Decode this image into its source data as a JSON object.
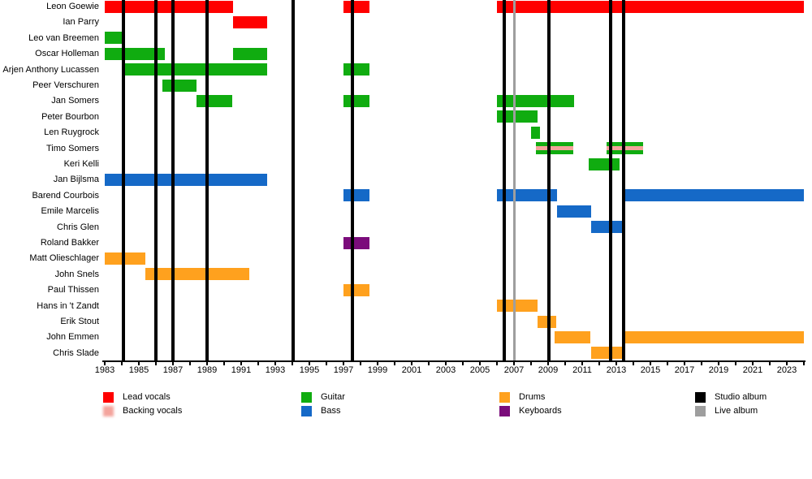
{
  "chart_data": {
    "type": "bar",
    "subtype": "band-membership-gantt-timeline",
    "x_axis": {
      "min_year": 1983,
      "max_year": 2024,
      "labeled_tick_years": [
        1983,
        1985,
        1987,
        1989,
        1991,
        1993,
        1995,
        1997,
        1999,
        2001,
        2003,
        2005,
        2007,
        2009,
        2011,
        2013,
        2015,
        2017,
        2019,
        2021,
        2023
      ],
      "minor_tick_every_years": 1,
      "grid": false
    },
    "role_colors": {
      "lead_vocals": "#FF0000",
      "backing_vocals": "#F4A49C",
      "guitar": "#10AC10",
      "bass": "#1569C7",
      "drums": "#FFA11E",
      "keyboards": "#7B0C7B",
      "studio_album": "#000000",
      "live_album": "#9E9E9E"
    },
    "members": [
      {
        "name": "Leon Goewie",
        "roles": [
          "lead_vocals"
        ],
        "periods": [
          [
            1983,
            1990.5
          ],
          [
            1997,
            1998.5
          ],
          [
            2006,
            2024
          ]
        ]
      },
      {
        "name": "Ian Parry",
        "roles": [
          "lead_vocals"
        ],
        "periods": [
          [
            1990.5,
            1992.5
          ]
        ]
      },
      {
        "name": "Leo van Breemen",
        "roles": [
          "guitar"
        ],
        "periods": [
          [
            1983,
            1984.1
          ]
        ]
      },
      {
        "name": "Oscar Holleman",
        "roles": [
          "guitar"
        ],
        "periods": [
          [
            1983,
            1986.5
          ],
          [
            1990.5,
            1992.5
          ]
        ]
      },
      {
        "name": "Arjen Anthony Lucassen",
        "roles": [
          "guitar"
        ],
        "periods": [
          [
            1984,
            1992.5
          ],
          [
            1997,
            1998.5
          ]
        ]
      },
      {
        "name": "Peer Verschuren",
        "roles": [
          "guitar"
        ],
        "periods": [
          [
            1986.4,
            1988.4
          ]
        ]
      },
      {
        "name": "Jan Somers",
        "roles": [
          "guitar"
        ],
        "periods": [
          [
            1988.4,
            1990.5
          ],
          [
            1997,
            1998.5
          ],
          [
            2006,
            2010.5
          ]
        ]
      },
      {
        "name": "Peter Bourbon",
        "roles": [
          "guitar"
        ],
        "periods": [
          [
            2006,
            2008.4
          ]
        ]
      },
      {
        "name": "Len Ruygrock",
        "roles": [
          "guitar"
        ],
        "periods": [
          [
            2008,
            2008.5
          ]
        ]
      },
      {
        "name": "Timo Somers",
        "roles": [
          "guitar",
          "backing_vocals"
        ],
        "periods": [
          [
            2008.3,
            2010.5
          ],
          [
            2012.45,
            2014.55
          ]
        ]
      },
      {
        "name": "Keri Kelli",
        "roles": [
          "guitar"
        ],
        "periods": [
          [
            2011.4,
            2013.2
          ]
        ]
      },
      {
        "name": "Jan Bijlsma",
        "roles": [
          "bass"
        ],
        "periods": [
          [
            1983,
            1992.5
          ]
        ]
      },
      {
        "name": "Barend Courbois",
        "roles": [
          "bass"
        ],
        "periods": [
          [
            1997,
            1998.5
          ],
          [
            2006,
            2009.5
          ],
          [
            2013.5,
            2024
          ]
        ]
      },
      {
        "name": "Emile Marcelis",
        "roles": [
          "bass"
        ],
        "periods": [
          [
            2009.5,
            2011.5
          ]
        ]
      },
      {
        "name": "Chris Glen",
        "roles": [
          "bass"
        ],
        "periods": [
          [
            2011.5,
            2013.5
          ]
        ]
      },
      {
        "name": "Roland Bakker",
        "roles": [
          "keyboards"
        ],
        "periods": [
          [
            1997,
            1998.5
          ]
        ]
      },
      {
        "name": "Matt Olieschlager",
        "roles": [
          "drums"
        ],
        "periods": [
          [
            1983,
            1985.4
          ]
        ]
      },
      {
        "name": "John Snels",
        "roles": [
          "drums"
        ],
        "periods": [
          [
            1985.4,
            1991.5
          ]
        ]
      },
      {
        "name": "Paul Thissen",
        "roles": [
          "drums"
        ],
        "periods": [
          [
            1997,
            1998.5
          ]
        ]
      },
      {
        "name": "Hans in 't Zandt",
        "roles": [
          "drums"
        ],
        "periods": [
          [
            2006,
            2008.4
          ]
        ]
      },
      {
        "name": "Erik Stout",
        "roles": [
          "drums"
        ],
        "periods": [
          [
            2008.4,
            2009.5
          ]
        ]
      },
      {
        "name": "John Emmen",
        "roles": [
          "drums"
        ],
        "periods": [
          [
            2009.4,
            2011.5
          ],
          [
            2013.5,
            2024
          ]
        ]
      },
      {
        "name": "Chris Slade",
        "roles": [
          "drums"
        ],
        "periods": [
          [
            2011.5,
            2013.5
          ]
        ]
      }
    ],
    "album_markers": {
      "studio_years": [
        1984.1,
        1986.0,
        1987.0,
        1989.0,
        1994.05,
        1997.5,
        2006.45,
        2009.05,
        2012.65,
        2013.45
      ],
      "live_years": [
        2007.0
      ]
    },
    "legend": {
      "columns": [
        {
          "items": [
            {
              "label": "Lead vocals",
              "color_key": "lead_vocals",
              "style": "solid"
            },
            {
              "label": "Backing vocals",
              "color_key": "backing_vocals",
              "style": "soft"
            }
          ]
        },
        {
          "items": [
            {
              "label": "Guitar",
              "color_key": "guitar",
              "style": "solid"
            },
            {
              "label": "Bass",
              "color_key": "bass",
              "style": "solid"
            }
          ]
        },
        {
          "items": [
            {
              "label": "Drums",
              "color_key": "drums",
              "style": "solid"
            },
            {
              "label": "Keyboards",
              "color_key": "keyboards",
              "style": "solid"
            }
          ]
        },
        {
          "items": [
            {
              "label": "Studio album",
              "color_key": "studio_album",
              "style": "solid"
            },
            {
              "label": "Live album",
              "color_key": "live_album",
              "style": "solid"
            }
          ]
        }
      ]
    }
  }
}
